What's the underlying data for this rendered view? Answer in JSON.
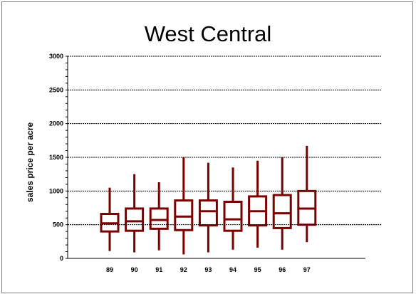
{
  "chart_data": {
    "type": "boxplot",
    "title": "West Central",
    "xlabel": "",
    "ylabel": "sales price per acre",
    "ylim": [
      0,
      3000
    ],
    "yticks": [
      "0",
      "500",
      "1000",
      "1500",
      "2000",
      "2500",
      "3000"
    ],
    "grid": true,
    "categories": [
      "89",
      "90",
      "91",
      "92",
      "93",
      "94",
      "95",
      "96",
      "97"
    ],
    "boxes": [
      {
        "label": "89",
        "min": 110,
        "q1": 400,
        "median": 520,
        "q3": 660,
        "max": 1050
      },
      {
        "label": "90",
        "min": 90,
        "q1": 410,
        "median": 550,
        "q3": 740,
        "max": 1250
      },
      {
        "label": "91",
        "min": 120,
        "q1": 440,
        "median": 570,
        "q3": 740,
        "max": 1130
      },
      {
        "label": "92",
        "min": 60,
        "q1": 420,
        "median": 620,
        "q3": 860,
        "max": 1500
      },
      {
        "label": "93",
        "min": 90,
        "q1": 490,
        "median": 700,
        "q3": 860,
        "max": 1420
      },
      {
        "label": "94",
        "min": 130,
        "q1": 410,
        "median": 580,
        "q3": 840,
        "max": 1350
      },
      {
        "label": "95",
        "min": 160,
        "q1": 490,
        "median": 700,
        "q3": 920,
        "max": 1450
      },
      {
        "label": "96",
        "min": 130,
        "q1": 450,
        "median": 670,
        "q3": 940,
        "max": 1500
      },
      {
        "label": "97",
        "min": 240,
        "q1": 500,
        "median": 740,
        "q3": 1000,
        "max": 1670
      }
    ],
    "colors": {
      "box": "#7b0000",
      "grid": "#000000",
      "axis": "#000000"
    }
  }
}
